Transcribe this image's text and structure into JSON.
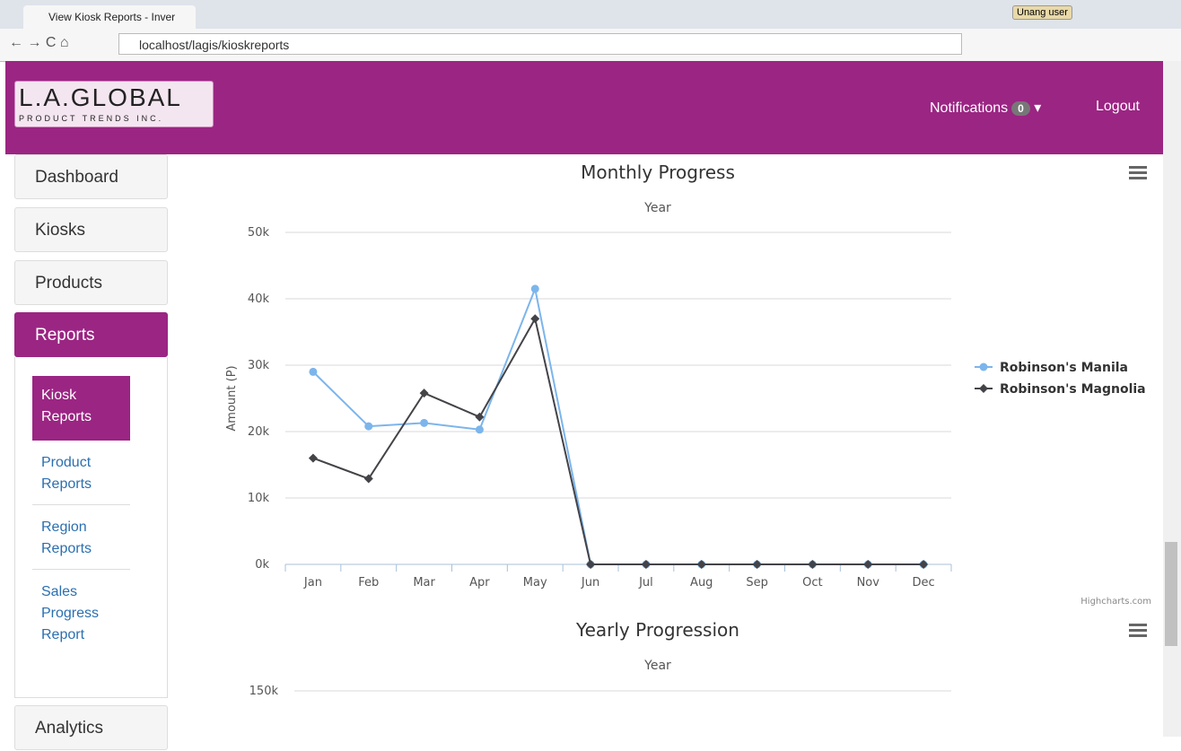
{
  "browser": {
    "tab_title": "View Kiosk Reports - Inver",
    "url": "localhost/lagis/kioskreports",
    "user": "Unang user"
  },
  "header": {
    "logo_main": "L.A.GLOBAL",
    "logo_sub": "PRODUCT TRENDS INC.",
    "notifications": "Notifications",
    "notification_count": 0,
    "logout": "Logout"
  },
  "sidebar": {
    "items": [
      "Dashboard",
      "Kiosks",
      "Products",
      "Reports"
    ],
    "sub_items": [
      "Kiosk Reports",
      "Product Reports",
      "Region Reports",
      "Sales Progress Report"
    ],
    "bottom_item": "Analytics"
  },
  "chart_data": [
    {
      "type": "line",
      "title": "Monthly Progress",
      "subtitle": "Year",
      "y_label": "Amount (P)",
      "credits": "Highcharts.com",
      "legend": "right",
      "categories": [
        "Jan",
        "Feb",
        "Mar",
        "Apr",
        "May",
        "Jun",
        "Jul",
        "Aug",
        "Sep",
        "Oct",
        "Nov",
        "Dec"
      ],
      "series": [
        {
          "name": "Robinson's Manila",
          "color": "#7cb5ec",
          "marker": "circle",
          "values": [
            29000,
            20800,
            21300,
            20300,
            41500,
            0,
            0,
            0,
            0,
            0,
            0,
            0
          ]
        },
        {
          "name": "Robinson's Magnolia",
          "color": "#434348",
          "marker": "diamond",
          "values": [
            16000,
            12900,
            25800,
            22200,
            37000,
            0,
            0,
            0,
            0,
            0,
            0,
            0
          ]
        }
      ],
      "ylim": [
        0,
        50000
      ],
      "yticks": [
        {
          "value": 0,
          "label": "0k"
        },
        {
          "value": 10000,
          "label": "10k"
        },
        {
          "value": 20000,
          "label": "20k"
        },
        {
          "value": 30000,
          "label": "30k"
        },
        {
          "value": 40000,
          "label": "40k"
        },
        {
          "value": 50000,
          "label": "50k"
        }
      ],
      "grid": true
    },
    {
      "type": "line",
      "title": "Yearly Progression",
      "subtitle": "Year",
      "ylim": [
        0,
        150000
      ],
      "yticks": [
        {
          "value": 150000,
          "label": "150k"
        }
      ],
      "grid": true
    }
  ]
}
